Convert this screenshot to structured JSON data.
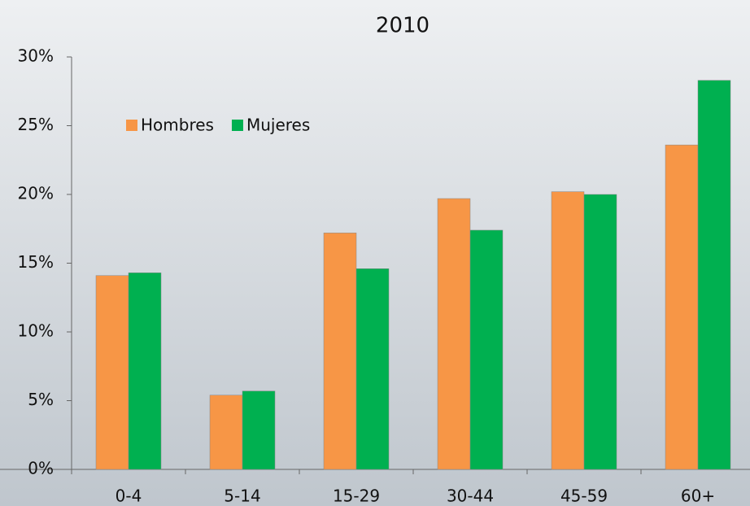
{
  "chart_data": {
    "type": "bar",
    "title": "2010",
    "categories": [
      "0-4",
      "5-14",
      "15-29",
      "30-44",
      "45-59",
      "60+"
    ],
    "series": [
      {
        "name": "Hombres",
        "color": "#f79646",
        "values": [
          14.1,
          5.4,
          17.2,
          19.7,
          20.2,
          23.6
        ]
      },
      {
        "name": "Mujeres",
        "color": "#00b050",
        "values": [
          14.3,
          5.7,
          14.6,
          17.4,
          20.0,
          28.3
        ]
      }
    ],
    "ylim": [
      0,
      30
    ],
    "yticks": [
      {
        "value": 0,
        "label": "0%"
      },
      {
        "value": 5,
        "label": "5%"
      },
      {
        "value": 10,
        "label": "10%"
      },
      {
        "value": 15,
        "label": "15%"
      },
      {
        "value": 20,
        "label": "20%"
      },
      {
        "value": 25,
        "label": "25%"
      },
      {
        "value": 30,
        "label": "30%"
      }
    ],
    "legend": "top-left",
    "grid": false
  }
}
